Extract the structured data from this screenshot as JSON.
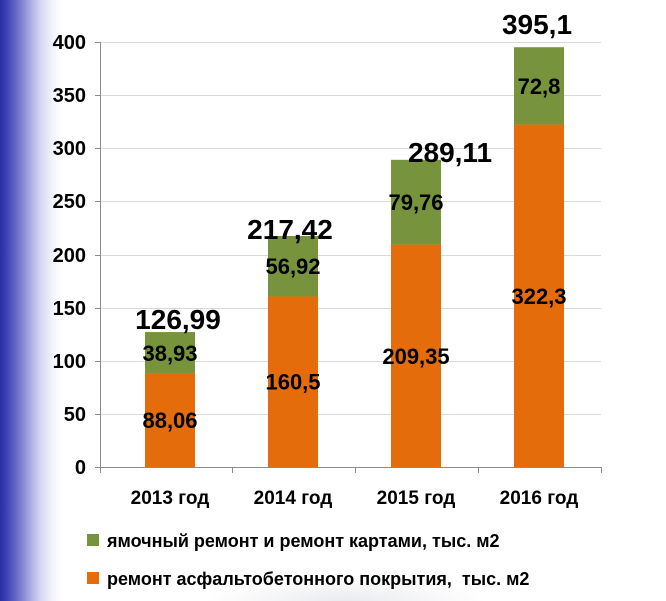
{
  "chart_data": {
    "type": "bar",
    "stacked": true,
    "categories": [
      "2013 год",
      "2014 год",
      "2015 год",
      "2016 год"
    ],
    "series": [
      {
        "name": "ремонт асфальтобетонного покрытия,  тыс. м2",
        "color": "#E46C0A",
        "values": [
          88.06,
          160.5,
          209.35,
          322.3
        ]
      },
      {
        "name": "ямочный ремонт и ремонт картами, тыс. м2",
        "color": "#77933C",
        "values": [
          38.93,
          56.92,
          79.76,
          72.8
        ]
      }
    ],
    "totals": [
      126.99,
      217.42,
      289.11,
      395.1
    ],
    "ylim": [
      0,
      400
    ],
    "yticks": [
      0,
      50,
      100,
      150,
      200,
      250,
      300,
      350,
      400
    ],
    "grid": true,
    "legend": "bottom",
    "data_labels": true
  }
}
